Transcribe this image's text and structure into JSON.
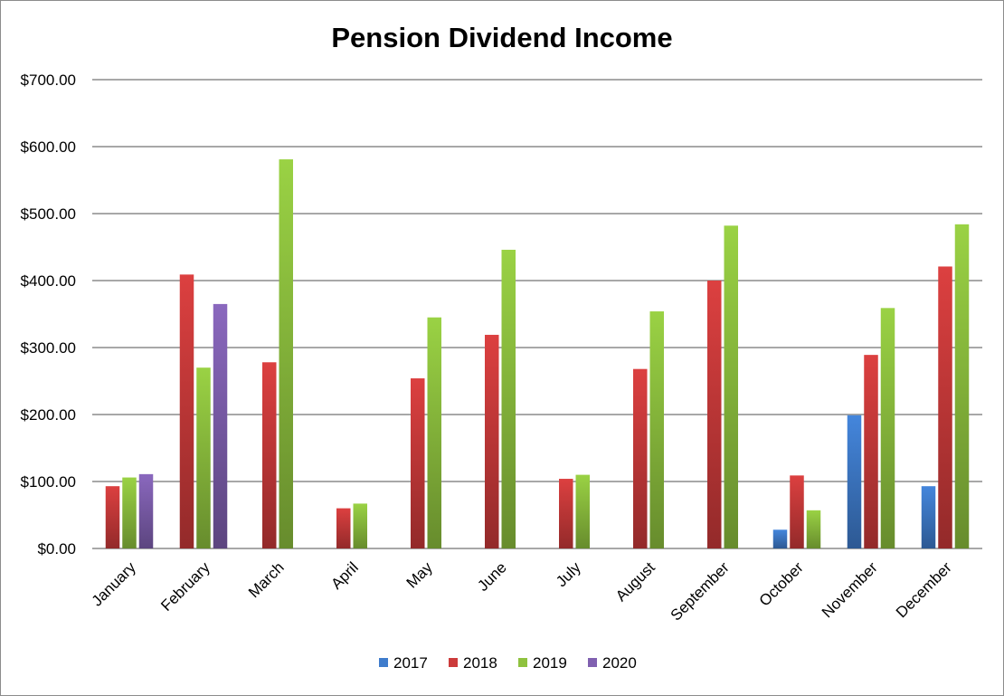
{
  "chart_data": {
    "type": "bar",
    "title": "Pension Dividend Income",
    "xlabel": "",
    "ylabel": "",
    "ylim": [
      0,
      700
    ],
    "yticks": [
      0,
      100,
      200,
      300,
      400,
      500,
      600,
      700
    ],
    "ytick_labels": [
      "$0.00",
      "$100.00",
      "$200.00",
      "$300.00",
      "$400.00",
      "$500.00",
      "$600.00",
      "$700.00"
    ],
    "grid": true,
    "legend_position": "bottom",
    "categories": [
      "January",
      "February",
      "March",
      "April",
      "May",
      "June",
      "July",
      "August",
      "September",
      "October",
      "November",
      "December"
    ],
    "series": [
      {
        "name": "2017",
        "color": "#3f7ccc",
        "values": [
          null,
          null,
          null,
          null,
          null,
          null,
          null,
          null,
          null,
          28,
          199,
          93
        ]
      },
      {
        "name": "2018",
        "color": "#cc3b3b",
        "values": [
          93,
          409,
          278,
          60,
          254,
          319,
          104,
          268,
          400,
          109,
          289,
          421
        ]
      },
      {
        "name": "2019",
        "color": "#8fc23f",
        "values": [
          106,
          270,
          581,
          67,
          345,
          446,
          110,
          354,
          482,
          57,
          359,
          484
        ]
      },
      {
        "name": "2020",
        "color": "#8060b0",
        "values": [
          111,
          365,
          null,
          null,
          null,
          null,
          null,
          null,
          null,
          null,
          null,
          null
        ]
      }
    ]
  }
}
